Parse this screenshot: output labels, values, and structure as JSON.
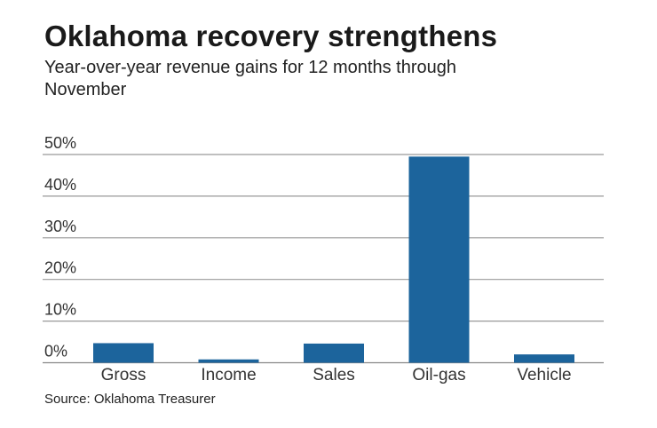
{
  "chart_data": {
    "type": "bar",
    "title": "Oklahoma recovery strengthens",
    "subtitle": "Year-over-year revenue gains for 12 months through November",
    "categories": [
      "Gross",
      "Income",
      "Sales",
      "Oil-gas",
      "Vehicle"
    ],
    "values": [
      4.7,
      0.8,
      4.6,
      49.5,
      2.0
    ],
    "unit": "%",
    "xlabel": "",
    "ylabel": "",
    "ylim": [
      0,
      50
    ],
    "yticks": [
      0,
      10,
      20,
      30,
      40,
      50
    ],
    "ytick_labels": [
      "0%",
      "10%",
      "20%",
      "30%",
      "40%",
      "50%"
    ],
    "grid": true,
    "bar_color": "#1c649c",
    "source": "Source: Oklahoma Treasurer"
  }
}
